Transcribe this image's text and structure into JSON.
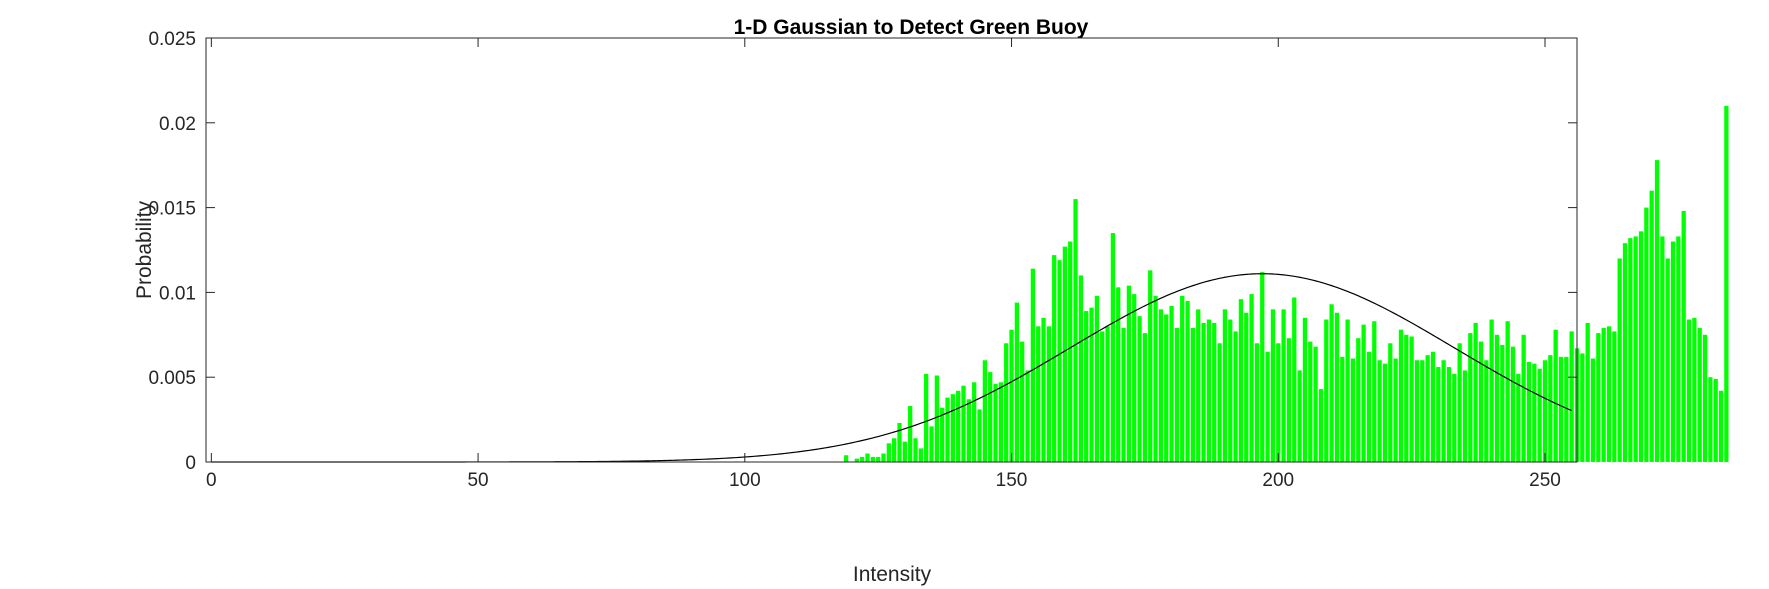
{
  "chart_data": {
    "type": "bar",
    "title": "1-D Gaussian to Detect Green Buoy",
    "xlabel": "Intensity",
    "ylabel": "Probability",
    "xlim": [
      -1,
      256
    ],
    "ylim": [
      0,
      0.025
    ],
    "xticks": [
      0,
      50,
      100,
      150,
      200,
      250
    ],
    "yticks": [
      0,
      0.005,
      0.01,
      0.015,
      0.02,
      0.025
    ],
    "ytick_labels": [
      "0",
      "0.005",
      "0.01",
      "0.015",
      "0.02",
      "0.025"
    ],
    "grid": false,
    "bar_color": "#00ff00",
    "curve_color": "#000000",
    "histogram": {
      "x_start": 119,
      "values": [
        0.0004,
        0,
        0.0002,
        0.0003,
        0.0005,
        0.0003,
        0.0003,
        0.0005,
        0.0011,
        0.0014,
        0.0023,
        0.0012,
        0.0033,
        0.0014,
        0.0008,
        0.0052,
        0.0021,
        0.0051,
        0.0032,
        0.0038,
        0.004,
        0.0042,
        0.0045,
        0.0037,
        0.0047,
        0.0031,
        0.006,
        0.0053,
        0.0046,
        0.0047,
        0.007,
        0.0078,
        0.0094,
        0.0071,
        0.0054,
        0.0114,
        0.008,
        0.0085,
        0.008,
        0.0122,
        0.0119,
        0.0127,
        0.013,
        0.0155,
        0.011,
        0.0089,
        0.0091,
        0.0098,
        0.0077,
        0.008,
        0.0135,
        0.0103,
        0.0079,
        0.0104,
        0.0099,
        0.0086,
        0.0076,
        0.0113,
        0.0098,
        0.009,
        0.0087,
        0.0092,
        0.0079,
        0.0098,
        0.0095,
        0.0079,
        0.009,
        0.0082,
        0.0084,
        0.0082,
        0.007,
        0.009,
        0.0084,
        0.0077,
        0.0096,
        0.0088,
        0.0099,
        0.007,
        0.0112,
        0.0065,
        0.009,
        0.007,
        0.009,
        0.0073,
        0.0097,
        0.0054,
        0.0085,
        0.0071,
        0.0068,
        0.0043,
        0.0084,
        0.0093,
        0.0088,
        0.0062,
        0.0084,
        0.0061,
        0.0073,
        0.0081,
        0.0065,
        0.0083,
        0.006,
        0.0058,
        0.007,
        0.0061,
        0.0078,
        0.0075,
        0.0074,
        0.006,
        0.006,
        0.0063,
        0.0065,
        0.0056,
        0.006,
        0.0056,
        0.0052,
        0.007,
        0.0054,
        0.0076,
        0.0082,
        0.0071,
        0.006,
        0.0084,
        0.0075,
        0.0069,
        0.0083,
        0.0068,
        0.0052,
        0.0075,
        0.0059,
        0.0058,
        0.0055,
        0.006,
        0.0063,
        0.0078,
        0.0062,
        0.0062,
        0.0077,
        0.0067,
        0.0064,
        0.0082,
        0.0061,
        0.0076,
        0.0079,
        0.008,
        0.0077,
        0.012,
        0.0129,
        0.0132,
        0.0133,
        0.0136,
        0.015,
        0.016,
        0.0178,
        0.0133,
        0.012,
        0.013,
        0.0133,
        0.0148,
        0.0084,
        0.0085,
        0.0079,
        0.0075,
        0.005,
        0.0049,
        0.0042,
        0.021
      ]
    },
    "gaussian": {
      "mean": 197,
      "std": 36,
      "peak": 0.0111
    }
  }
}
